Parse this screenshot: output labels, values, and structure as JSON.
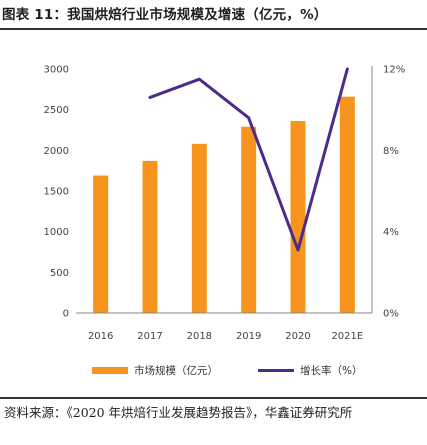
{
  "figure": {
    "title": "图表 11：我国烘焙行业市场规模及增速（亿元，%）",
    "source": "资料来源：《2020 年烘焙行业发展趋势报告》，华鑫证券研究所"
  },
  "colors": {
    "bar": "#F7941D",
    "line": "#4B2C8A",
    "axis": "#888888",
    "rule": "#333333"
  },
  "chart_data": {
    "type": "bar",
    "categories": [
      "2016",
      "2017",
      "2018",
      "2019",
      "2020",
      "2021E"
    ],
    "series": [
      {
        "name": "市场规模（亿元）",
        "type": "bar",
        "axis": "left",
        "values": [
          1690,
          1870,
          2080,
          2290,
          2360,
          2660
        ]
      },
      {
        "name": "增长率（%）",
        "type": "line",
        "axis": "right",
        "values": [
          null,
          10.6,
          11.5,
          9.6,
          3.1,
          12.0
        ]
      }
    ],
    "ylim_left": [
      0,
      3000
    ],
    "yticks_left": [
      0,
      500,
      1000,
      1500,
      2000,
      2500,
      3000
    ],
    "ylim_right": [
      0,
      12
    ],
    "yticks_right": [
      "0%",
      "4%",
      "8%",
      "12%"
    ],
    "grid": false,
    "legend_position": "bottom"
  }
}
